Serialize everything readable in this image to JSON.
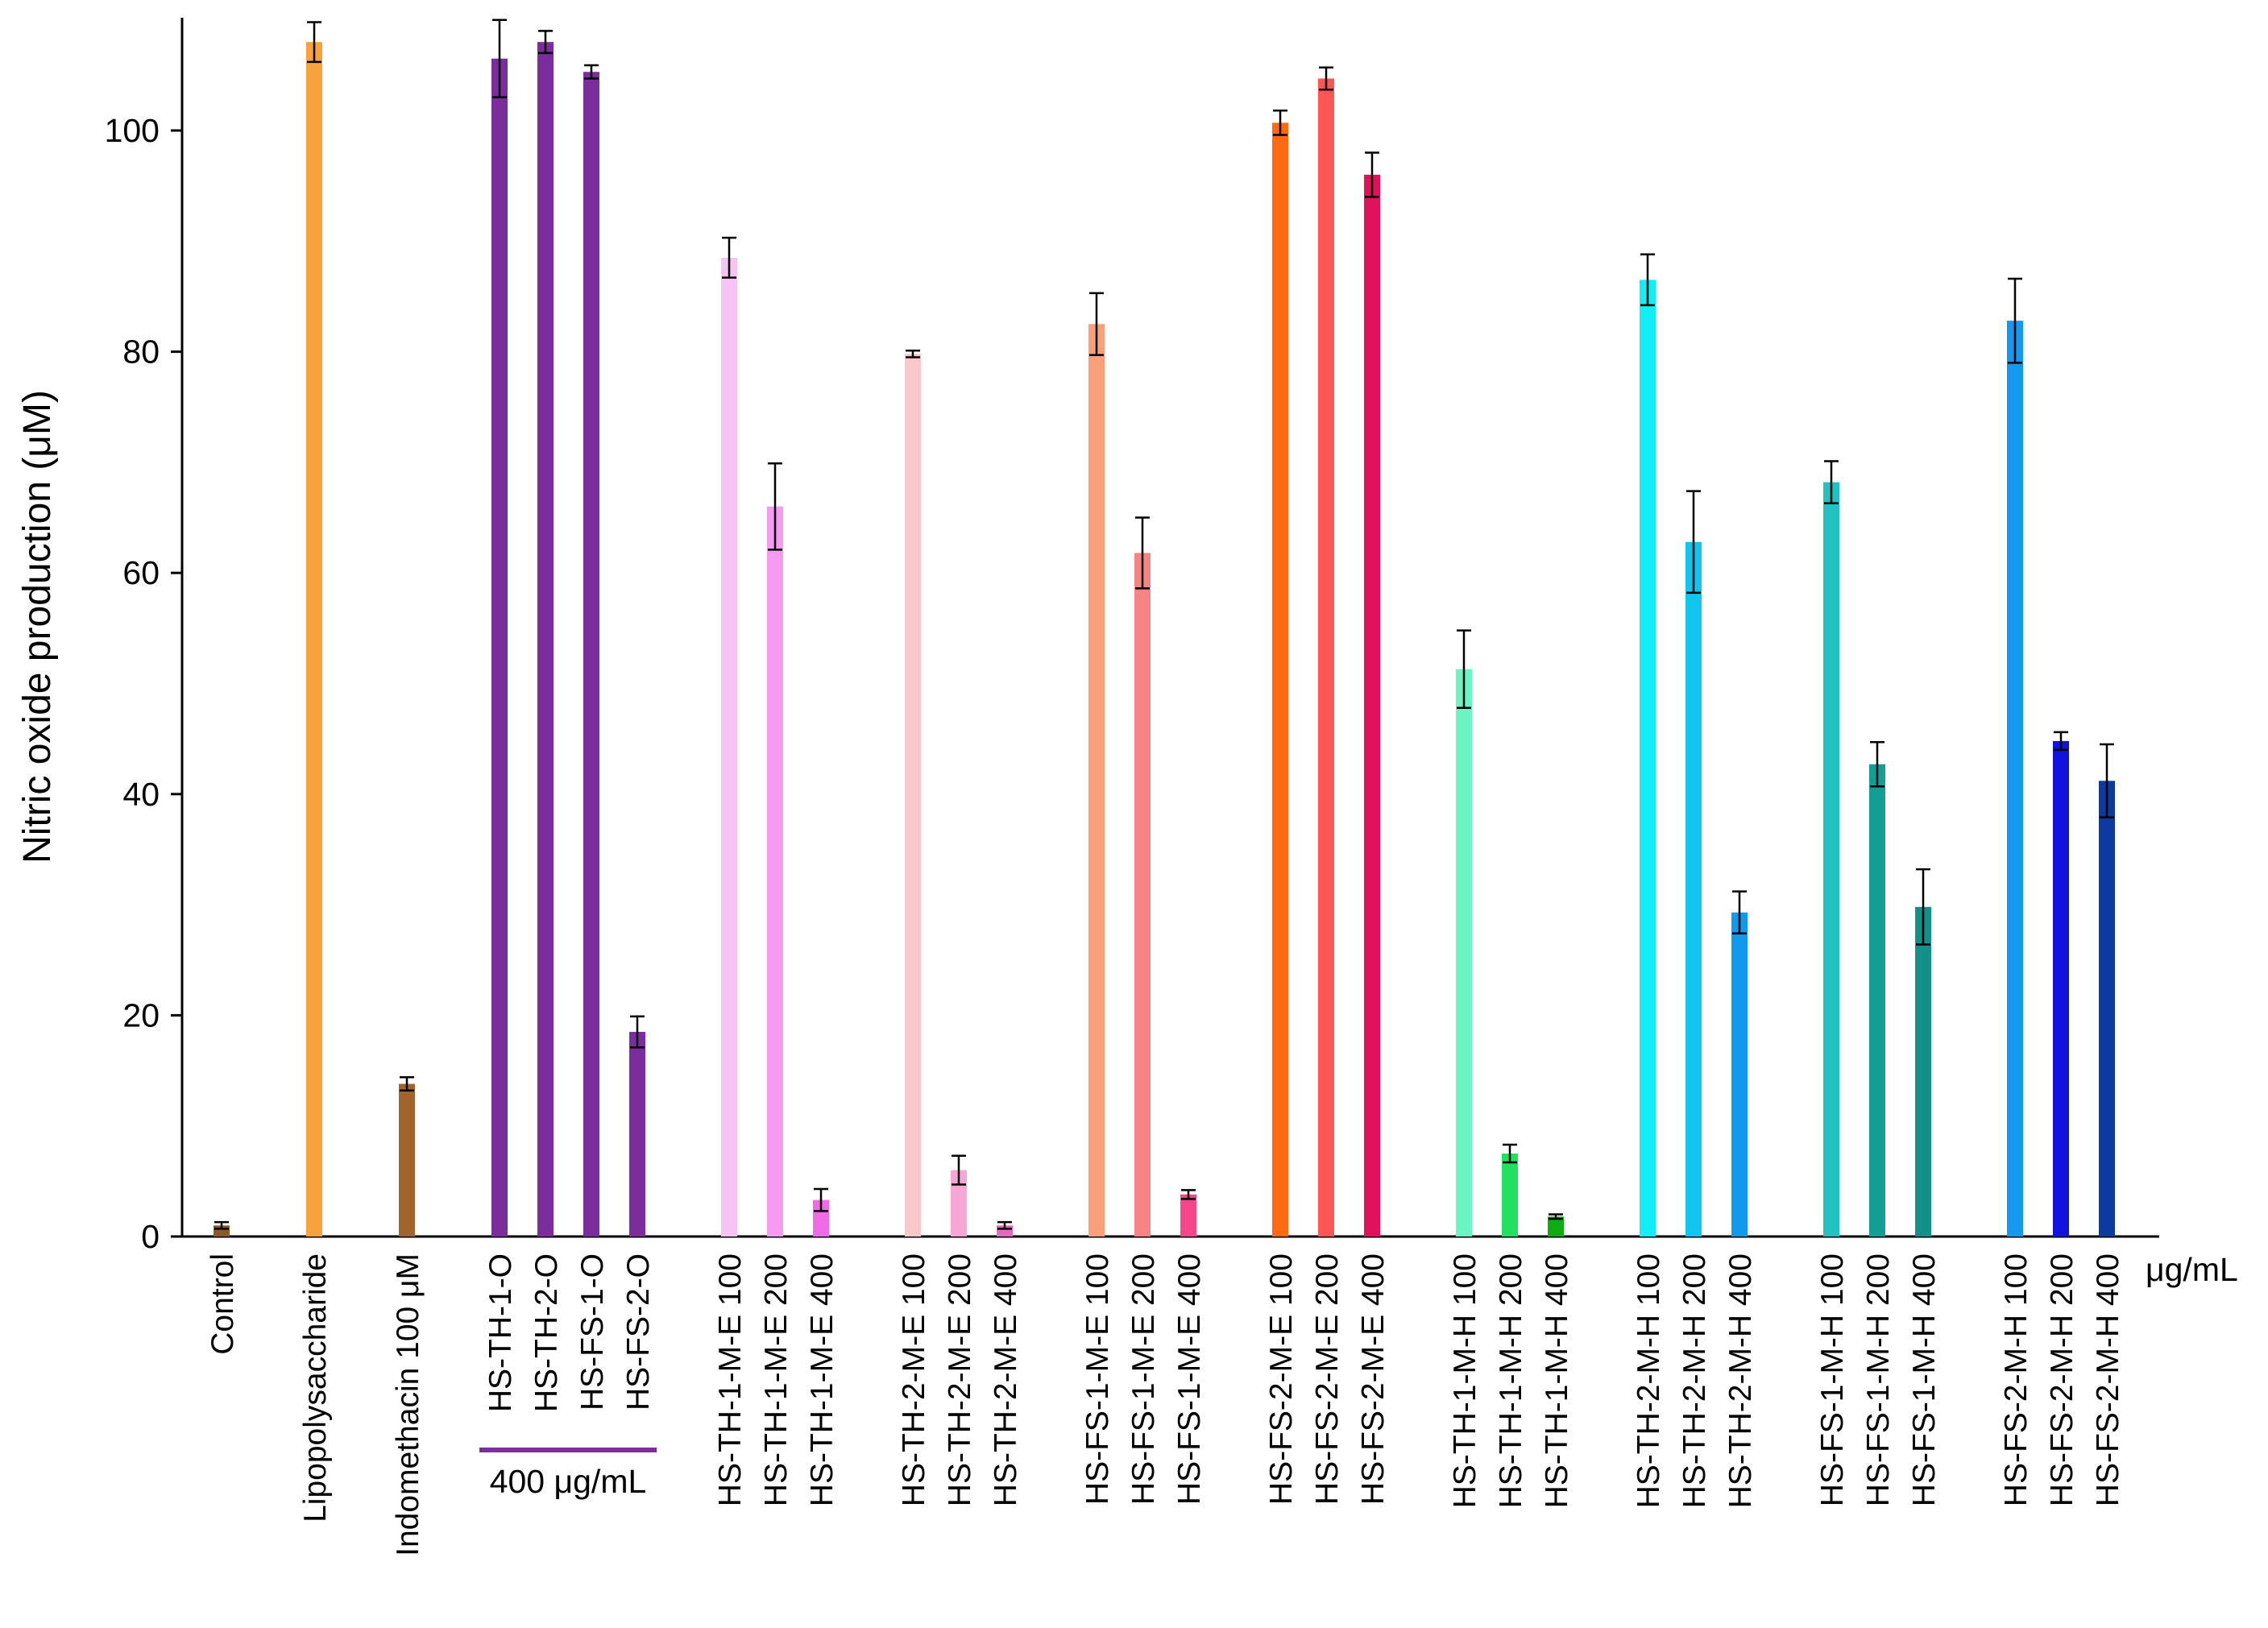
{
  "chart_data": {
    "type": "bar",
    "title": "",
    "xlabel": "",
    "ylabel": "Nitric oxide production (μM)",
    "ylim": [
      0,
      110
    ],
    "yticks": [
      0,
      20,
      40,
      60,
      80,
      100
    ],
    "x_unit": "μg/mL",
    "group_annotation": "400 μg/mL",
    "group_annotation_color": "#7B2D9E",
    "grid": false,
    "categories": [
      "Control",
      "Lipopolysaccharide",
      "Indomethacin 100 μM",
      "HS-TH-1-O",
      "HS-TH-2-O",
      "HS-FS-1-O",
      "HS-FS-2-O",
      "HS-TH-1-M-E 100",
      "HS-TH-1-M-E 200",
      "HS-TH-1-M-E 400",
      "HS-TH-2-M-E 100",
      "HS-TH-2-M-E 200",
      "HS-TH-2-M-E 400",
      "HS-FS-1-M-E 100",
      "HS-FS-1-M-E 200",
      "HS-FS-1-M-E 400",
      "HS-FS-2-M-E 100",
      "HS-FS-2-M-E 200",
      "HS-FS-2-M-E 400",
      "HS-TH-1-M-H 100",
      "HS-TH-1-M-H 200",
      "HS-TH-1-M-H 400",
      "HS-TH-2-M-H 100",
      "HS-TH-2-M-H 200",
      "HS-TH-2-M-H 400",
      "HS-FS-1-M-H 100",
      "HS-FS-1-M-H 200",
      "HS-FS-1-M-H 400",
      "HS-FS-2-M-H 100",
      "HS-FS-2-M-H 200",
      "HS-FS-2-M-H 400"
    ],
    "values": [
      1.0,
      108.0,
      13.8,
      106.5,
      108.0,
      105.3,
      18.5,
      88.5,
      66.0,
      3.3,
      79.8,
      6.0,
      1.0,
      82.5,
      61.8,
      3.8,
      100.7,
      104.7,
      96.0,
      51.3,
      7.5,
      1.8,
      86.5,
      62.8,
      29.3,
      68.2,
      42.7,
      29.8,
      82.8,
      44.8,
      41.2
    ],
    "errors": [
      0.3,
      1.8,
      0.6,
      3.5,
      1.0,
      0.6,
      1.4,
      1.8,
      3.9,
      1.0,
      0.3,
      1.3,
      0.3,
      2.8,
      3.2,
      0.4,
      1.1,
      1.0,
      2.0,
      3.5,
      0.8,
      0.2,
      2.3,
      4.6,
      1.9,
      1.9,
      2.0,
      3.4,
      3.8,
      0.8,
      3.3
    ],
    "colors": [
      "#8B5A2B",
      "#F7A23C",
      "#A0642C",
      "#7B2D9E",
      "#7B2D9E",
      "#7B2D9E",
      "#7B2D9E",
      "#F5C4F5",
      "#F79BF2",
      "#F06CE6",
      "#FAC8C8",
      "#F7A6D5",
      "#E868C0",
      "#F9A07A",
      "#F78484",
      "#F5468C",
      "#FF6A10",
      "#FF5555",
      "#E0105A",
      "#6CF5C4",
      "#22E060",
      "#11AA11",
      "#11EEF6",
      "#11C6EE",
      "#1199EE",
      "#22C2C2",
      "#119E95",
      "#149088",
      "#1599F0",
      "#1111E0",
      "#0D3AA0"
    ]
  }
}
